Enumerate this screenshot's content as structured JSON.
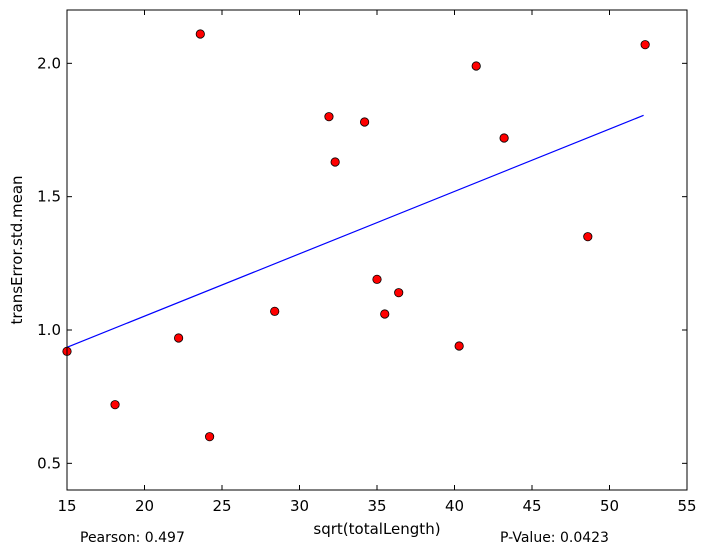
{
  "chart_data": {
    "type": "scatter",
    "xlabel": "sqrt(totalLength)",
    "ylabel": "transError.std.mean",
    "xlim": [
      15,
      55
    ],
    "ylim": [
      0.4,
      2.2
    ],
    "xticks": [
      15,
      20,
      25,
      30,
      35,
      40,
      45,
      50,
      55
    ],
    "yticks": [
      0.5,
      1.0,
      1.5,
      2.0
    ],
    "xtick_labels": [
      "15",
      "20",
      "25",
      "30",
      "35",
      "40",
      "45",
      "50",
      "55"
    ],
    "ytick_labels": [
      "0.5",
      "1.0",
      "1.5",
      "2.0"
    ],
    "grid": false,
    "points": [
      {
        "x": 15.0,
        "y": 0.92
      },
      {
        "x": 18.1,
        "y": 0.72
      },
      {
        "x": 22.2,
        "y": 0.97
      },
      {
        "x": 23.6,
        "y": 2.11
      },
      {
        "x": 24.2,
        "y": 0.6
      },
      {
        "x": 28.4,
        "y": 1.07
      },
      {
        "x": 31.9,
        "y": 1.8
      },
      {
        "x": 32.3,
        "y": 1.63
      },
      {
        "x": 34.2,
        "y": 1.78
      },
      {
        "x": 35.0,
        "y": 1.19
      },
      {
        "x": 35.5,
        "y": 1.06
      },
      {
        "x": 36.4,
        "y": 1.14
      },
      {
        "x": 40.3,
        "y": 0.94
      },
      {
        "x": 41.4,
        "y": 1.99
      },
      {
        "x": 43.2,
        "y": 1.72
      },
      {
        "x": 48.6,
        "y": 1.35
      },
      {
        "x": 52.3,
        "y": 2.07
      }
    ],
    "fit_line": {
      "x": [
        15.0,
        52.2
      ],
      "y": [
        0.935,
        1.805
      ]
    },
    "colors": {
      "points": "#ff0000",
      "point_edge": "#000000",
      "fit_line": "#0000ff"
    }
  },
  "stats": {
    "pearson": "Pearson: 0.497",
    "p_value": "P-Value: 0.0423"
  }
}
